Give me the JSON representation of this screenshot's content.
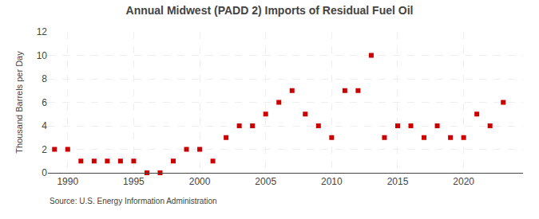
{
  "chart_data": {
    "type": "scatter",
    "title": "Annual Midwest (PADD 2) Imports of Residual Fuel Oil",
    "ylabel": "Thousand Barrels per Day",
    "annotations": [
      "Source: U.S. Energy Information Administration"
    ],
    "x": [
      1989,
      1990,
      1991,
      1992,
      1993,
      1994,
      1995,
      1996,
      1997,
      1998,
      1999,
      2000,
      2001,
      2002,
      2003,
      2004,
      2005,
      2006,
      2007,
      2008,
      2009,
      2010,
      2011,
      2012,
      2013,
      2014,
      2015,
      2016,
      2017,
      2018,
      2019,
      2020,
      2021,
      2022,
      2023
    ],
    "values": [
      2,
      2,
      1,
      1,
      1,
      1,
      1,
      0,
      0,
      1,
      2,
      2,
      1,
      3,
      4,
      4,
      5,
      6,
      7,
      5,
      4,
      3,
      7,
      7,
      10,
      3,
      4,
      4,
      3,
      4,
      3,
      3,
      5,
      4,
      6
    ],
    "color": "#cc0000",
    "marker": "square",
    "xlim": [
      1988.5,
      2024.5
    ],
    "ylim": [
      0,
      12
    ],
    "xticks": [
      1990,
      1995,
      2000,
      2005,
      2010,
      2015,
      2020
    ],
    "yticks": [
      0,
      2,
      4,
      6,
      8,
      10,
      12
    ],
    "grid": true
  }
}
